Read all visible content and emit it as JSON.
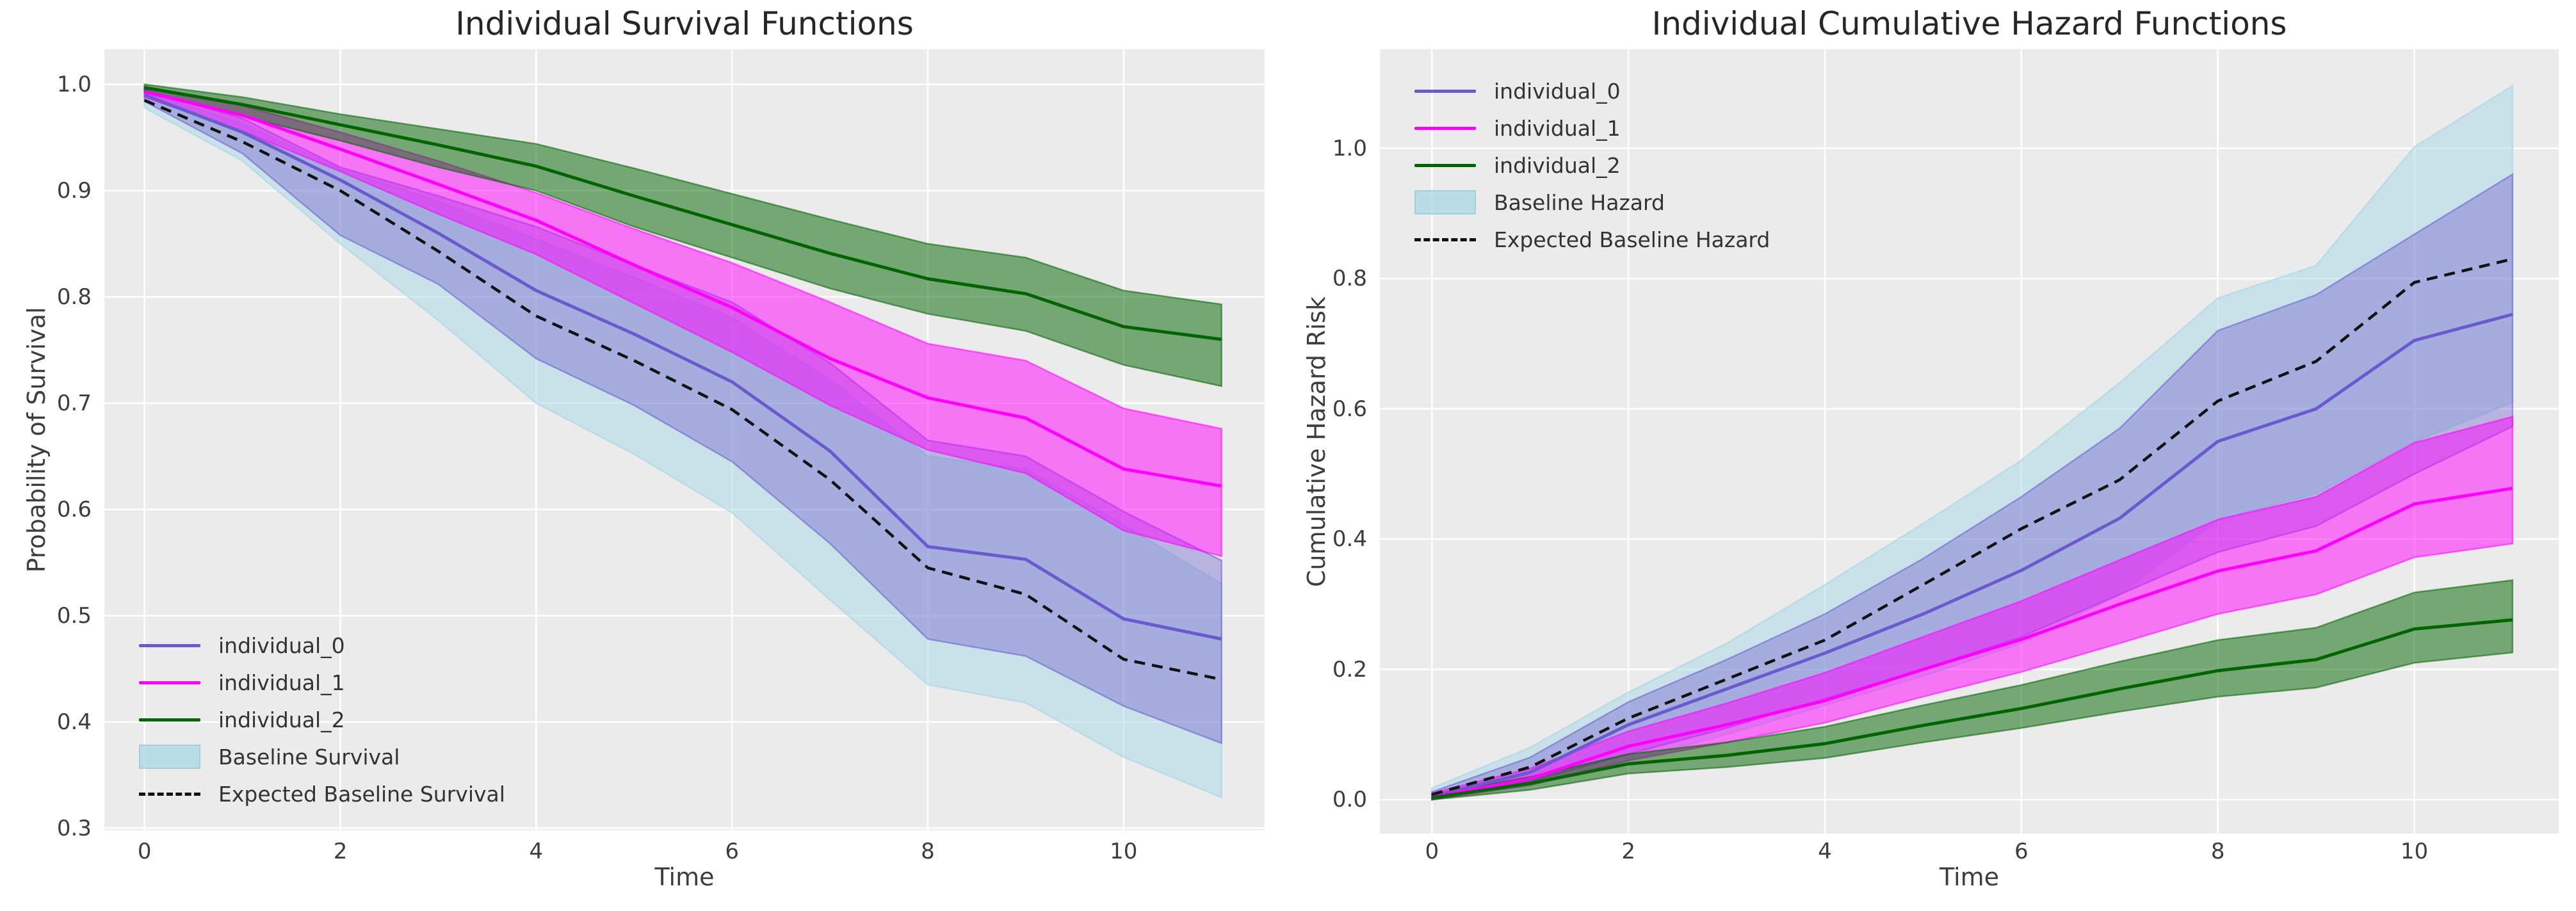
{
  "figure": {
    "background": "#ffffff",
    "axes_background": "#EBEBEB",
    "grid_color": "#ffffff",
    "tick_color": "#3d3d3d",
    "title_color": "#262626"
  },
  "chart_data": [
    {
      "type": "line",
      "title": "Individual Survival Functions",
      "xlabel": "Time",
      "ylabel": "Probability of Survival",
      "legend_position": "lower left",
      "grid": true,
      "xlim": [
        -0.41,
        11.44
      ],
      "ylim": [
        0.298,
        1.033
      ],
      "xticks": {
        "values": [
          0,
          2,
          4,
          6,
          8,
          10
        ],
        "labels": [
          "0",
          "2",
          "4",
          "6",
          "8",
          "10"
        ]
      },
      "yticks": {
        "values": [
          1.0,
          0.9,
          0.8,
          0.7,
          0.6,
          0.5,
          0.4,
          0.3
        ],
        "labels": [
          "1.0",
          "0.9",
          "0.8",
          "0.7",
          "0.6",
          "0.5",
          "0.4",
          "0.3"
        ]
      },
      "x": [
        0,
        1,
        2,
        3,
        4,
        5,
        6,
        7,
        8,
        9,
        10,
        11
      ],
      "series": [
        {
          "name": "individual_0",
          "kind": "line",
          "style": "solid",
          "color": "#6A5ACD",
          "values": [
            0.99,
            0.955,
            0.91,
            0.86,
            0.806,
            0.765,
            0.72,
            0.655,
            0.565,
            0.553,
            0.497,
            0.478
          ],
          "band": {
            "upper": [
              0.995,
              0.968,
              0.922,
              0.895,
              0.866,
              0.83,
              0.795,
              0.738,
              0.665,
              0.65,
              0.598,
              0.552
            ],
            "lower": [
              0.984,
              0.935,
              0.858,
              0.812,
              0.742,
              0.698,
              0.645,
              0.568,
              0.478,
              0.462,
              0.415,
              0.38
            ],
            "opacity": 0.38
          }
        },
        {
          "name": "individual_1",
          "kind": "line",
          "style": "solid",
          "color": "#FF00FF",
          "values": [
            0.993,
            0.971,
            0.939,
            0.906,
            0.872,
            0.83,
            0.79,
            0.742,
            0.705,
            0.686,
            0.638,
            0.622
          ],
          "band": {
            "upper": [
              0.998,
              0.98,
              0.955,
              0.928,
              0.898,
              0.864,
              0.832,
              0.795,
              0.756,
              0.74,
              0.695,
              0.676
            ],
            "lower": [
              0.988,
              0.956,
              0.918,
              0.878,
              0.84,
              0.794,
              0.748,
              0.698,
              0.656,
              0.634,
              0.58,
              0.556
            ],
            "opacity": 0.5
          }
        },
        {
          "name": "individual_2",
          "kind": "line",
          "style": "solid",
          "color": "#006400",
          "values": [
            0.997,
            0.981,
            0.962,
            0.943,
            0.923,
            0.895,
            0.868,
            0.841,
            0.817,
            0.803,
            0.772,
            0.76
          ],
          "band": {
            "upper": [
              1.0,
              0.988,
              0.972,
              0.958,
              0.944,
              0.921,
              0.897,
              0.873,
              0.85,
              0.837,
              0.806,
              0.793
            ],
            "lower": [
              0.993,
              0.97,
              0.947,
              0.922,
              0.9,
              0.866,
              0.837,
              0.808,
              0.784,
              0.768,
              0.736,
              0.716
            ],
            "opacity": 0.5
          }
        },
        {
          "name": "Baseline Survival",
          "kind": "band",
          "color": "#ADD8E6",
          "opacity": 0.55,
          "upper": [
            0.993,
            0.963,
            0.92,
            0.89,
            0.854,
            0.818,
            0.78,
            0.722,
            0.65,
            0.638,
            0.585,
            0.53
          ],
          "lower": [
            0.978,
            0.928,
            0.85,
            0.778,
            0.7,
            0.652,
            0.597,
            0.515,
            0.435,
            0.418,
            0.367,
            0.329
          ]
        },
        {
          "name": "Expected Baseline Survival",
          "kind": "line",
          "style": "dashed",
          "color": "#111111",
          "values": [
            0.985,
            0.946,
            0.9,
            0.843,
            0.782,
            0.74,
            0.694,
            0.628,
            0.545,
            0.52,
            0.459,
            0.44
          ]
        }
      ]
    },
    {
      "type": "line",
      "title": "Individual Cumulative Hazard Functions",
      "xlabel": "Time",
      "ylabel": "Cumulative Hazard Risk",
      "legend_position": "upper left",
      "grid": true,
      "xlim": [
        -0.53,
        11.47
      ],
      "ylim": [
        -0.052,
        1.152
      ],
      "xticks": {
        "values": [
          0,
          2,
          4,
          6,
          8,
          10
        ],
        "labels": [
          "0",
          "2",
          "4",
          "6",
          "8",
          "10"
        ]
      },
      "yticks": {
        "values": [
          1.0,
          0.8,
          0.6,
          0.4,
          0.2,
          0.0
        ],
        "labels": [
          "1.0",
          "0.8",
          "0.6",
          "0.4",
          "0.2",
          "0.0"
        ]
      },
      "x": [
        0,
        1,
        2,
        3,
        4,
        5,
        6,
        7,
        8,
        9,
        10,
        11
      ],
      "series": [
        {
          "name": "individual_0",
          "kind": "line",
          "style": "solid",
          "color": "#6A5ACD",
          "values": [
            0.005,
            0.042,
            0.115,
            0.17,
            0.225,
            0.285,
            0.352,
            0.432,
            0.55,
            0.6,
            0.705,
            0.745
          ],
          "band": {
            "upper": [
              0.012,
              0.065,
              0.15,
              0.215,
              0.285,
              0.37,
              0.465,
              0.57,
              0.72,
              0.775,
              0.868,
              0.96
            ],
            "lower": [
              0.0,
              0.028,
              0.07,
              0.11,
              0.155,
              0.2,
              0.25,
              0.315,
              0.38,
              0.42,
              0.5,
              0.573
            ],
            "opacity": 0.38
          }
        },
        {
          "name": "individual_1",
          "kind": "line",
          "style": "solid",
          "color": "#FF00FF",
          "values": [
            0.004,
            0.032,
            0.082,
            0.115,
            0.152,
            0.2,
            0.246,
            0.3,
            0.351,
            0.382,
            0.454,
            0.478
          ],
          "band": {
            "upper": [
              0.01,
              0.048,
              0.105,
              0.148,
              0.195,
              0.25,
              0.305,
              0.368,
              0.43,
              0.465,
              0.548,
              0.588
            ],
            "lower": [
              0.0,
              0.022,
              0.06,
              0.088,
              0.118,
              0.158,
              0.196,
              0.24,
              0.285,
              0.315,
              0.372,
              0.393
            ],
            "opacity": 0.5
          }
        },
        {
          "name": "individual_2",
          "kind": "line",
          "style": "solid",
          "color": "#006400",
          "values": [
            0.003,
            0.025,
            0.055,
            0.068,
            0.086,
            0.114,
            0.14,
            0.17,
            0.198,
            0.215,
            0.262,
            0.276
          ],
          "band": {
            "upper": [
              0.008,
              0.035,
              0.07,
              0.088,
              0.112,
              0.145,
              0.176,
              0.212,
              0.245,
              0.264,
              0.318,
              0.337
            ],
            "lower": [
              0.0,
              0.015,
              0.04,
              0.05,
              0.064,
              0.088,
              0.11,
              0.135,
              0.158,
              0.172,
              0.21,
              0.226
            ],
            "opacity": 0.5
          }
        },
        {
          "name": "Baseline Hazard",
          "kind": "band",
          "color": "#ADD8E6",
          "opacity": 0.55,
          "upper": [
            0.018,
            0.08,
            0.165,
            0.24,
            0.33,
            0.424,
            0.521,
            0.64,
            0.77,
            0.82,
            1.002,
            1.096
          ],
          "lower": [
            0.0,
            0.026,
            0.06,
            0.1,
            0.145,
            0.19,
            0.24,
            0.315,
            0.43,
            0.47,
            0.55,
            0.61
          ]
        },
        {
          "name": "Expected Baseline Hazard",
          "kind": "line",
          "style": "dashed",
          "color": "#111111",
          "values": [
            0.008,
            0.05,
            0.125,
            0.185,
            0.245,
            0.33,
            0.416,
            0.491,
            0.612,
            0.673,
            0.794,
            0.83
          ]
        }
      ]
    }
  ]
}
